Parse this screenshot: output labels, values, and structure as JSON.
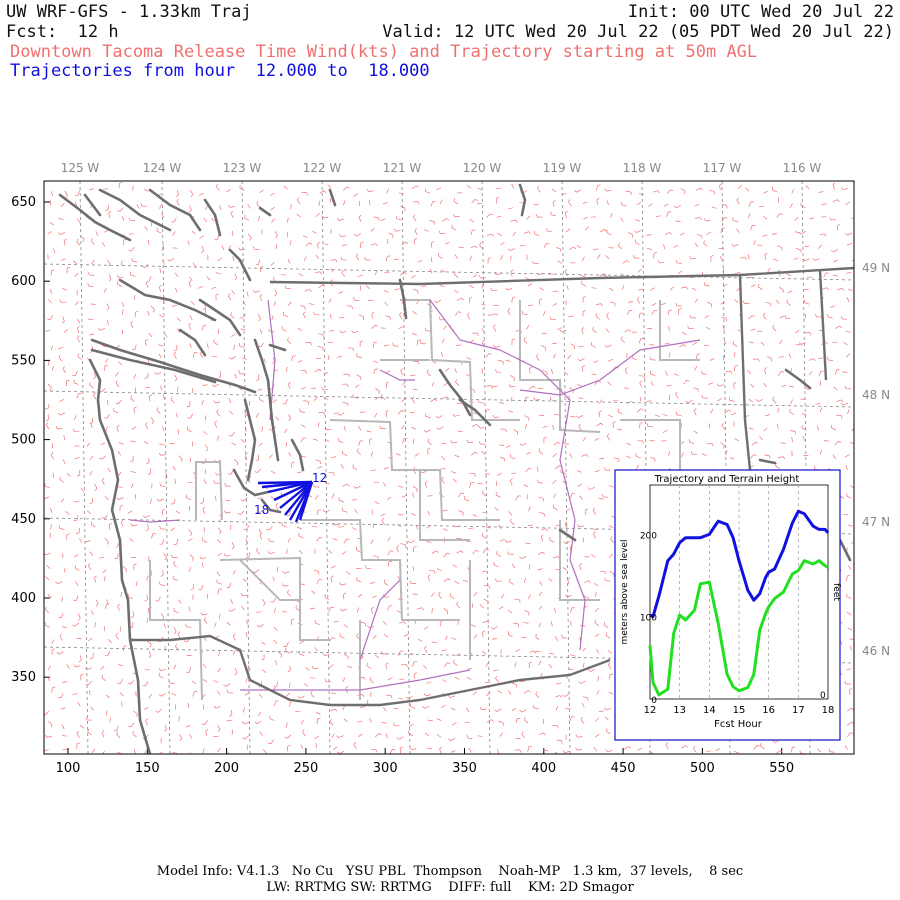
{
  "header": {
    "model_title": "UW WRF-GFS - 1.33km Traj",
    "init_time": "Init: 00 UTC Wed 20 Jul 22",
    "forecast": "Fcst:  12 h",
    "valid_time": "Valid: 12 UTC Wed 20 Jul 22 (05 PDT Wed 20 Jul 22)",
    "field_description": "Downtown Tacoma Release Time Wind(kts) and Trajectory starting at 50m AGL",
    "trajectory_hours": "Trajectories from hour  12.000 to  18.000"
  },
  "map": {
    "longitude_labels": [
      "125 W",
      "124 W",
      "123 W",
      "122 W",
      "121 W",
      "120 W",
      "119 W",
      "118 W",
      "117 W",
      "116 W"
    ],
    "latitude_labels": [
      "49 N",
      "48 N",
      "47 N",
      "46 N"
    ],
    "x_axis_ticks": [
      "100",
      "150",
      "200",
      "250",
      "300",
      "350",
      "400",
      "450",
      "500",
      "550"
    ],
    "y_axis_ticks": [
      "650",
      "600",
      "550",
      "500",
      "450",
      "400",
      "350"
    ],
    "trajectory_markers": {
      "start": "12",
      "end": "18"
    },
    "colors": {
      "wind_barbs": "#f07070",
      "coastline": "#6e6e6e",
      "boundaries": "#b8b8b8",
      "rivers": "#b070c0",
      "trajectory": "#1010e0",
      "grid": "#888888"
    }
  },
  "inset_chart": {
    "title": "Trajectory and Terrain Height",
    "xlabel": "Fcst Hour",
    "ylabel_left": "meters above sea level",
    "ylabel_right": "feet",
    "x_ticks": [
      "12",
      "13",
      "14",
      "15",
      "16",
      "17",
      "18"
    ],
    "y_ticks_left": [
      "0",
      "100",
      "200"
    ],
    "y_ticks_right": [
      "0"
    ]
  },
  "chart_data": {
    "type": "line",
    "title": "Trajectory and Terrain Height",
    "xlabel": "Fcst Hour",
    "ylabel": "meters above sea level",
    "xlim": [
      12,
      18
    ],
    "ylim": [
      0,
      260
    ],
    "x": [
      12.0,
      12.1,
      12.3,
      12.6,
      12.8,
      13.0,
      13.2,
      13.5,
      13.7,
      14.0,
      14.3,
      14.6,
      14.8,
      15.0,
      15.3,
      15.5,
      15.7,
      15.9,
      16.0,
      16.2,
      16.5,
      16.8,
      17.0,
      17.2,
      17.5,
      17.7,
      17.9,
      18.0
    ],
    "series": [
      {
        "name": "trajectory",
        "color": "#1010e0",
        "values": [
          102,
          100,
          125,
          168,
          176,
          190,
          196,
          196,
          196,
          200,
          216,
          212,
          196,
          168,
          132,
          120,
          128,
          148,
          154,
          158,
          182,
          214,
          228,
          225,
          210,
          206,
          206,
          202
        ]
      },
      {
        "name": "terrain",
        "color": "#20e020",
        "values": [
          65,
          20,
          5,
          12,
          80,
          102,
          96,
          108,
          140,
          142,
          92,
          30,
          15,
          10,
          14,
          30,
          84,
          104,
          112,
          122,
          130,
          152,
          156,
          168,
          164,
          168,
          162,
          160
        ]
      }
    ]
  },
  "footer": {
    "line1": "Model Info: V4.1.3   No Cu   YSU PBL  Thompson    Noah-MP   1.3 km,  37 levels,    8 sec",
    "line2": "LW: RRTMG SW: RRTMG    DIFF: full    KM: 2D Smagor"
  }
}
